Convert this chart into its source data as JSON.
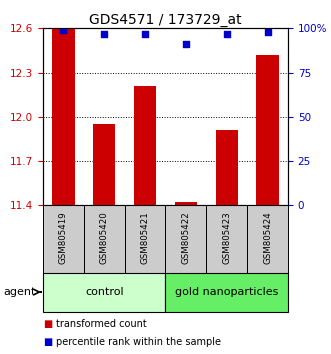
{
  "title": "GDS4571 / 173729_at",
  "samples": [
    "GSM805419",
    "GSM805420",
    "GSM805421",
    "GSM805422",
    "GSM805423",
    "GSM805424"
  ],
  "bar_values": [
    12.6,
    11.95,
    12.21,
    11.42,
    11.91,
    12.42
  ],
  "percentile_values": [
    99,
    97,
    97,
    91,
    97,
    98
  ],
  "ylim": [
    11.4,
    12.6
  ],
  "yticks_left": [
    11.4,
    11.7,
    12.0,
    12.3,
    12.6
  ],
  "yticks_right": [
    0,
    25,
    50,
    75,
    100
  ],
  "ytick_labels_right": [
    "0",
    "25",
    "50",
    "75",
    "100%"
  ],
  "bar_color": "#cc0000",
  "percentile_color": "#0000cc",
  "control_samples": [
    0,
    1,
    2
  ],
  "nanoparticle_samples": [
    3,
    4,
    5
  ],
  "control_label": "control",
  "nanoparticle_label": "gold nanoparticles",
  "agent_label": "agent",
  "legend_bar_label": "transformed count",
  "legend_pct_label": "percentile rank within the sample",
  "control_bg": "#ccffcc",
  "nano_bg": "#66ee66",
  "sample_bg": "#cccccc",
  "title_fontsize": 10,
  "tick_fontsize": 7.5,
  "label_fontsize": 8
}
